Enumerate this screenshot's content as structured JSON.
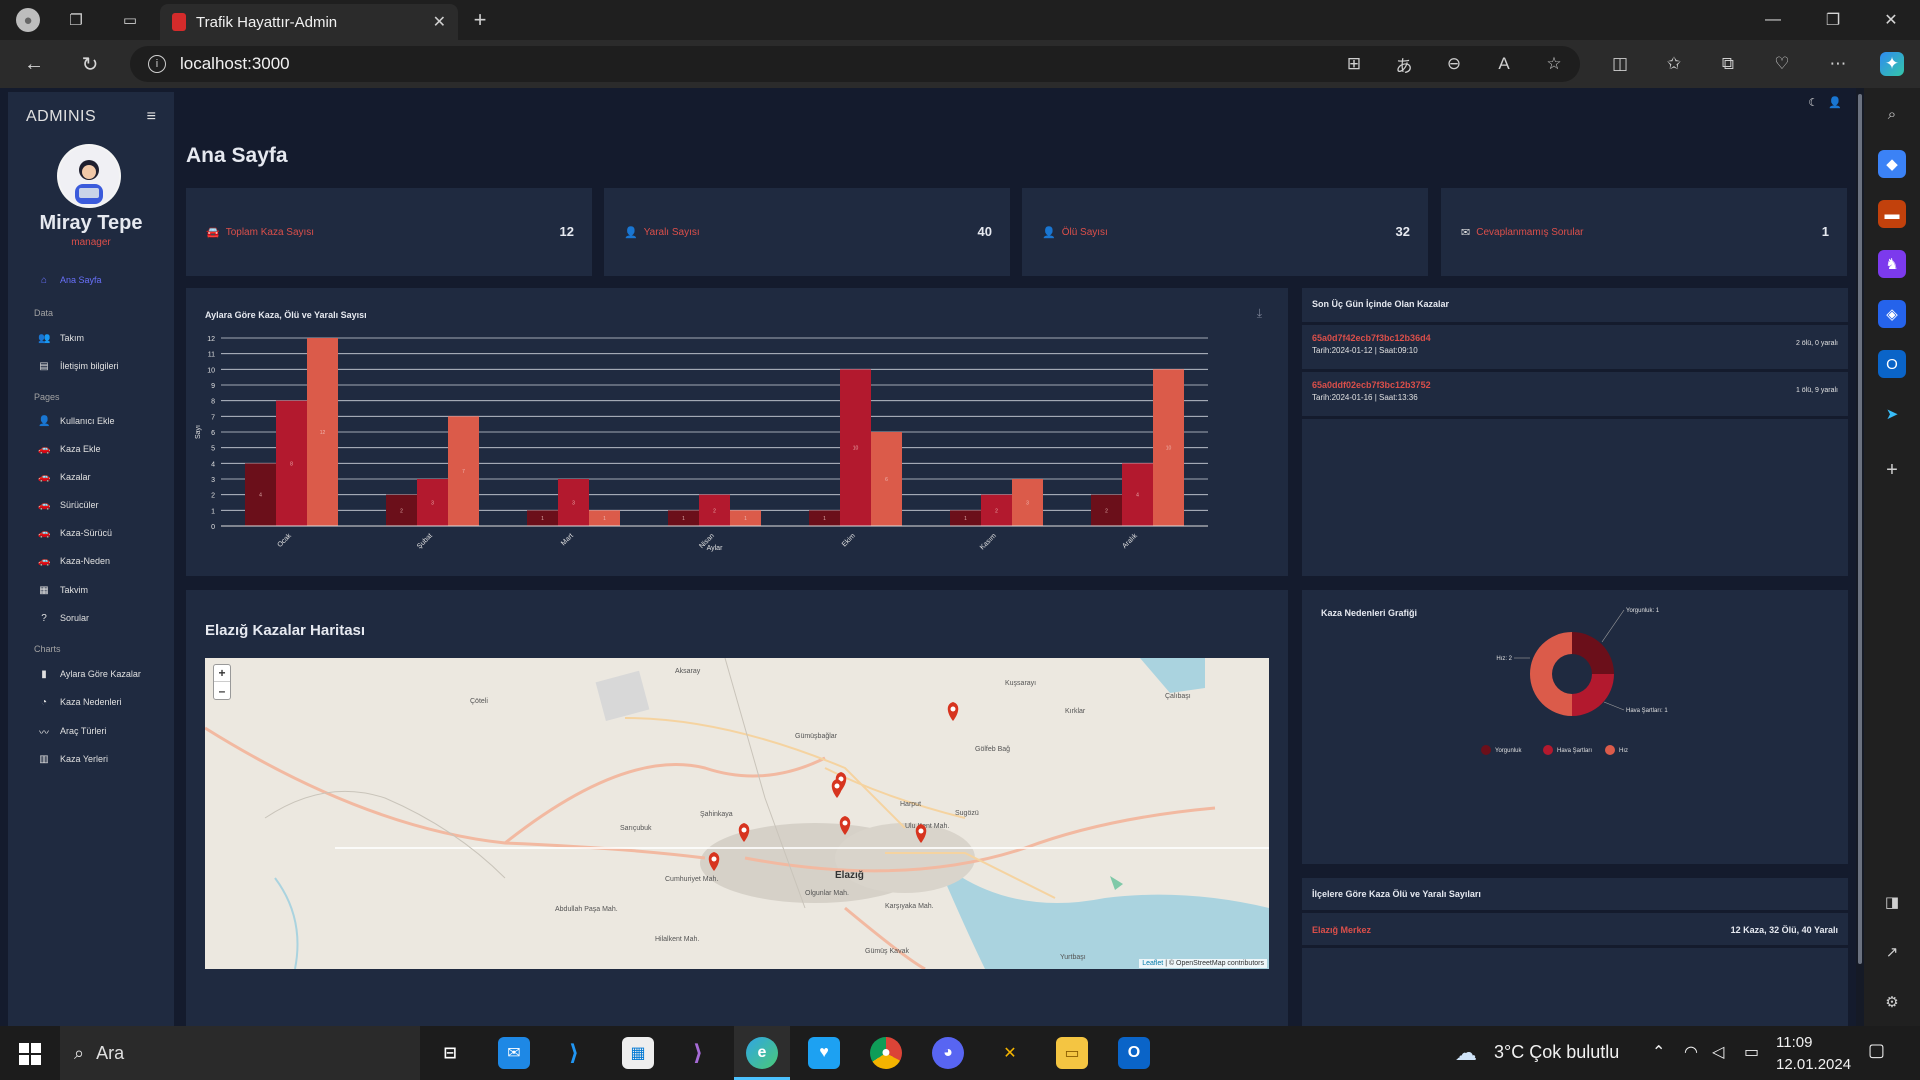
{
  "browser": {
    "tab_title": "Trafik Hayattır-Admin",
    "url": "localhost:3000"
  },
  "sidebar": {
    "brand": "ADMINIS",
    "user_name": "Miray Tepe",
    "user_role": "manager",
    "items": [
      {
        "label": "Ana Sayfa",
        "icon": "home-icon"
      },
      {
        "section": "Data"
      },
      {
        "label": "Takım",
        "icon": "team-icon"
      },
      {
        "label": "İletişim bilgileri",
        "icon": "contacts-icon"
      },
      {
        "section": "Pages"
      },
      {
        "label": "Kullanıcı Ekle",
        "icon": "person-add-icon"
      },
      {
        "label": "Kaza Ekle",
        "icon": "car-add-icon"
      },
      {
        "label": "Kazalar",
        "icon": "car-icon"
      },
      {
        "label": "Sürücüler",
        "icon": "car-icon"
      },
      {
        "label": "Kaza-Sürücü",
        "icon": "car-icon"
      },
      {
        "label": "Kaza-Neden",
        "icon": "car-icon"
      },
      {
        "label": "Takvim",
        "icon": "calendar-icon"
      },
      {
        "label": "Sorular",
        "icon": "help-icon"
      },
      {
        "section": "Charts"
      },
      {
        "label": "Aylara Göre Kazalar",
        "icon": "bar-chart-icon"
      },
      {
        "label": "Kaza Nedenleri",
        "icon": "pie-chart-icon"
      },
      {
        "label": "Araç Türleri",
        "icon": "line-chart-icon"
      },
      {
        "label": "Kaza Yerleri",
        "icon": "map-icon"
      }
    ]
  },
  "main": {
    "title": "Ana Sayfa",
    "stats": [
      {
        "label": "Toplam Kaza Sayısı",
        "value": "12",
        "icon": "car-crash-icon"
      },
      {
        "label": "Yaralı Sayısı",
        "value": "40",
        "icon": "person-icon"
      },
      {
        "label": "Ölü Sayısı",
        "value": "32",
        "icon": "person-icon"
      },
      {
        "label": "Cevaplanmamış Sorular",
        "value": "1",
        "icon": "mail-icon"
      }
    ],
    "recent": {
      "title": "Son Üç Gün İçinde Olan Kazalar",
      "rows": [
        {
          "id": "65a0d7f42ecb7f3bc12b36d4",
          "date": "Tarih:2024-01-12 | Saat:09:10",
          "summary": "2 ölü, 0 yaralı"
        },
        {
          "id": "65a0ddf02ecb7f3bc12b3752",
          "date": "Tarih:2024-01-16 | Saat:13:36",
          "summary": "1 ölü, 9 yaralı"
        }
      ]
    },
    "map": {
      "title": "Elazığ Kazalar Haritası",
      "zoom_in": "+",
      "zoom_out": "–",
      "attribution_leaflet": "Leaflet",
      "attribution_rest": " | © OpenStreetMap contributors",
      "labels": [
        "Çöteli",
        "Aksaray",
        "Gümüşbağlar",
        "Sarıçubuk",
        "Şahinkaya",
        "Elazığ",
        "Harput",
        "Ulu Kent Mah.",
        "Sugözü",
        "Olgunlar Mah.",
        "Karşıyaka Mah.",
        "Cumhuriyet Mah.",
        "Abdullah Paşa Mah.",
        "Gümüş Kavak",
        "Hilalkent Mah.",
        "Yurtbaşı",
        "Kuşsarayı",
        "Kırklar",
        "Gölfeb Bağ",
        "Çalıbaşı"
      ]
    },
    "donut": {
      "title": "Kaza Nedenleri Grafiği",
      "callouts": [
        "Yorgunluk: 1",
        "Hız: 2",
        "Hava Şartları: 1"
      ]
    },
    "districts": {
      "title": "İlçelere Göre Kaza Ölü ve Yaralı Sayıları",
      "rows": [
        {
          "name": "Elazığ Merkez",
          "summary": "12 Kaza, 32 Ölü, 40 Yaralı"
        }
      ]
    }
  },
  "colors": {
    "bg": "#141b2d",
    "card": "#1f2a40",
    "accent_red": "#db4f4a",
    "series_dark": "#6b0f1a",
    "series_mid": "#b3192e",
    "series_light": "#db5b4a",
    "active_link": "#6870fa"
  },
  "chart_data": [
    {
      "type": "bar",
      "title": "Aylara Göre Kaza, Ölü ve Yaralı Sayısı",
      "xlabel": "Aylar",
      "ylabel": "Sayı",
      "categories": [
        "Ocak",
        "Şubat",
        "Mart",
        "Nisan",
        "Ekim",
        "Kasım",
        "Aralık"
      ],
      "series": [
        {
          "values": [
            4,
            2,
            1,
            1,
            1,
            1,
            2
          ],
          "color": "#6b0f1a"
        },
        {
          "values": [
            8,
            3,
            3,
            2,
            10,
            2,
            4
          ],
          "color": "#b3192e"
        },
        {
          "values": [
            12,
            7,
            1,
            1,
            6,
            3,
            10
          ],
          "color": "#db5b4a"
        }
      ],
      "ylim": [
        0,
        12
      ],
      "yticks": [
        0,
        1,
        2,
        3,
        4,
        5,
        6,
        7,
        8,
        9,
        10,
        11,
        12
      ],
      "grid": true
    },
    {
      "type": "pie",
      "title": "Kaza Nedenleri Grafiği",
      "labels": [
        "Yorgunluk",
        "Hava Şartları",
        "Hız"
      ],
      "values": [
        1,
        1,
        2
      ],
      "colors": [
        "#6b0f1a",
        "#b3192e",
        "#db5b4a"
      ],
      "legend": "bottom"
    }
  ],
  "taskbar": {
    "search_placeholder": "Ara",
    "weather": "3°C  Çok bulutlu",
    "time": "11:09",
    "date": "12.01.2024"
  }
}
